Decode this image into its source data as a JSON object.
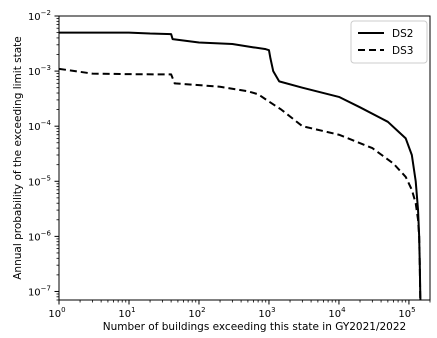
{
  "chart_data": {
    "type": "line",
    "xlabel": "Number of buildings exceeding this state in GY2021/2022",
    "ylabel": "Annual probability of the exceeding limit state",
    "x_scale": "log",
    "y_scale": "log",
    "xlim": [
      1,
      200000
    ],
    "ylim": [
      7e-08,
      0.01
    ],
    "x_ticks": [
      {
        "value": 1,
        "base": "10",
        "exp": "0"
      },
      {
        "value": 10,
        "base": "10",
        "exp": "1"
      },
      {
        "value": 100,
        "base": "10",
        "exp": "2"
      },
      {
        "value": 1000,
        "base": "10",
        "exp": "3"
      },
      {
        "value": 10000,
        "base": "10",
        "exp": "4"
      },
      {
        "value": 100000,
        "base": "10",
        "exp": "5"
      }
    ],
    "y_ticks": [
      {
        "value": 1e-07,
        "base": "10",
        "exp": "−7"
      },
      {
        "value": 1e-06,
        "base": "10",
        "exp": "−6"
      },
      {
        "value": 1e-05,
        "base": "10",
        "exp": "−5"
      },
      {
        "value": 0.0001,
        "base": "10",
        "exp": "−4"
      },
      {
        "value": 0.001,
        "base": "10",
        "exp": "−3"
      },
      {
        "value": 0.01,
        "base": "10",
        "exp": "−2"
      }
    ],
    "legend_position": "top-right",
    "grid": false,
    "series": [
      {
        "name": "DS2",
        "style": "solid",
        "color": "#000000",
        "points": [
          [
            1,
            0.005
          ],
          [
            10,
            0.005
          ],
          [
            20,
            0.0048
          ],
          [
            40,
            0.0047
          ],
          [
            42,
            0.0038
          ],
          [
            100,
            0.0033
          ],
          [
            300,
            0.0031
          ],
          [
            600,
            0.0027
          ],
          [
            900,
            0.0025
          ],
          [
            1000,
            0.0024
          ],
          [
            1050,
            0.0017
          ],
          [
            1150,
            0.001
          ],
          [
            1400,
            0.00065
          ],
          [
            3000,
            0.0005
          ],
          [
            10000,
            0.00034
          ],
          [
            20000,
            0.00022
          ],
          [
            50000,
            0.00012
          ],
          [
            90000,
            6e-05
          ],
          [
            110000,
            3e-05
          ],
          [
            125000,
            1e-05
          ],
          [
            135000,
            3e-06
          ],
          [
            140000,
            1e-06
          ],
          [
            143000,
            3e-07
          ],
          [
            145000,
            1e-07
          ],
          [
            146000,
            7e-08
          ]
        ]
      },
      {
        "name": "DS3",
        "style": "dashed",
        "color": "#000000",
        "points": [
          [
            1,
            0.0011
          ],
          [
            3,
            0.0009
          ],
          [
            10,
            0.00088
          ],
          [
            40,
            0.00087
          ],
          [
            45,
            0.0006
          ],
          [
            200,
            0.00052
          ],
          [
            500,
            0.00043
          ],
          [
            700,
            0.00038
          ],
          [
            1000,
            0.00028
          ],
          [
            1500,
            0.0002
          ],
          [
            3000,
            0.0001
          ],
          [
            10000,
            7e-05
          ],
          [
            30000,
            4e-05
          ],
          [
            60000,
            2.1e-05
          ],
          [
            90000,
            1.2e-05
          ],
          [
            110000,
            7e-06
          ],
          [
            125000,
            4e-06
          ],
          [
            135000,
            2e-06
          ],
          [
            140000,
            1e-06
          ],
          [
            143000,
            3e-07
          ],
          [
            145000,
            7e-08
          ]
        ]
      }
    ]
  }
}
